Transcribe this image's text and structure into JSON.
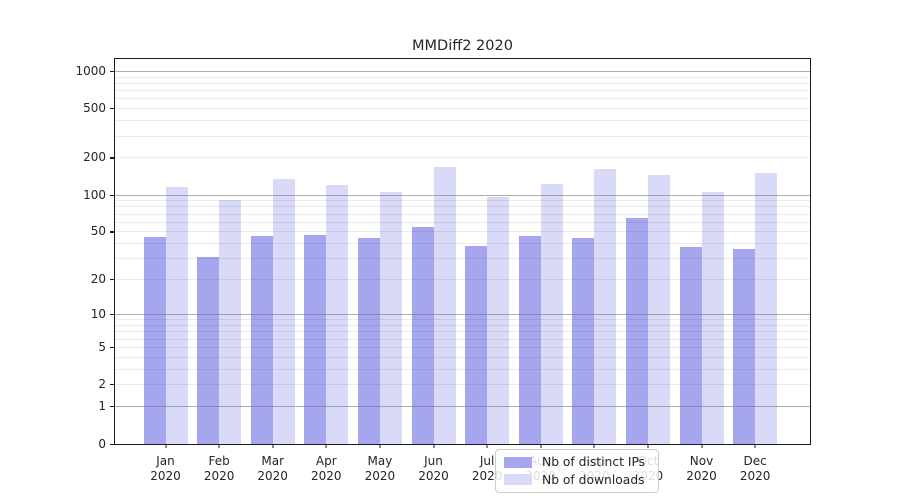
{
  "title": "MMDiff2 2020",
  "chart_data": {
    "type": "bar",
    "title": "MMDiff2 2020",
    "categories": [
      "Jan",
      "Feb",
      "Mar",
      "Apr",
      "May",
      "Jun",
      "Jul",
      "Aug",
      "Sep",
      "Oct",
      "Nov",
      "Dec"
    ],
    "x_tick_second_line": "2020",
    "series": [
      {
        "name": "Nb of distinct IPs",
        "color": "#a6a6ef",
        "values": [
          45,
          31,
          46,
          47,
          44,
          54,
          38,
          46,
          44,
          65,
          37,
          36
        ]
      },
      {
        "name": "Nb of downloads",
        "color": "#d9d9f8",
        "values": [
          116,
          90,
          133,
          119,
          105,
          167,
          95,
          122,
          162,
          145,
          105,
          151
        ]
      }
    ],
    "yscale": "log10(x+1)",
    "ylim": [
      0,
      1246
    ],
    "y_ticks_labeled": [
      0,
      1,
      2,
      5,
      10,
      20,
      50,
      100,
      200,
      500,
      1000
    ],
    "y_minor_ticks": [
      3,
      4,
      6,
      7,
      8,
      9,
      30,
      40,
      60,
      70,
      80,
      90,
      300,
      400,
      600,
      700,
      800,
      900
    ],
    "grid": true,
    "legend_position": "lower center"
  }
}
